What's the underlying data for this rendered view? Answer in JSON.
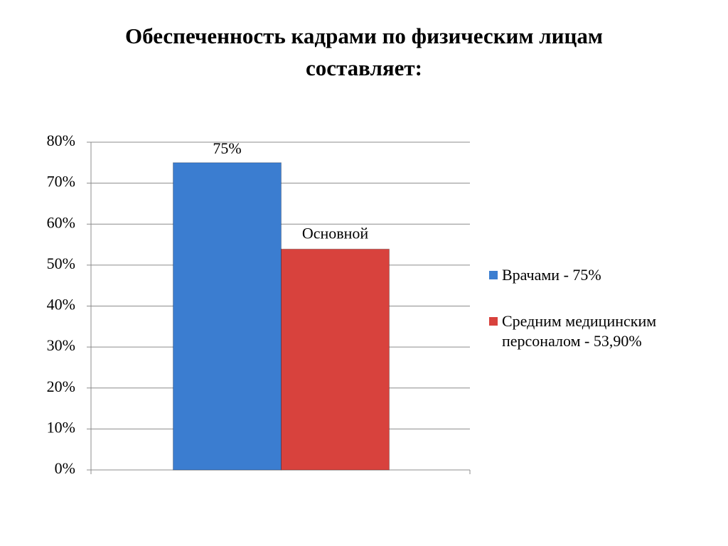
{
  "chart_data": {
    "type": "bar",
    "title": "Обеспеченность кадрами по физическим лицам составляет:",
    "categories": [
      null
    ],
    "series": [
      {
        "name": "Врачами - 75%",
        "color": "#3b7dd0",
        "values": [
          75
        ],
        "value_labels": [
          "75%"
        ]
      },
      {
        "name": "Средним медицинским персоналом - 53,90%",
        "color": "#d8423d",
        "values": [
          53.9
        ]
      }
    ],
    "annotations": [
      "Основной"
    ],
    "ylim": [
      0,
      80
    ],
    "yticks": [
      {
        "value": 0,
        "label": "0%"
      },
      {
        "value": 10,
        "label": "10%"
      },
      {
        "value": 20,
        "label": "20%"
      },
      {
        "value": 30,
        "label": "30%"
      },
      {
        "value": 40,
        "label": "40%"
      },
      {
        "value": 50,
        "label": "50%"
      },
      {
        "value": 60,
        "label": "60%"
      },
      {
        "value": 70,
        "label": "70%"
      },
      {
        "value": 80,
        "label": "80%"
      }
    ],
    "grid": true,
    "legend": "right"
  }
}
